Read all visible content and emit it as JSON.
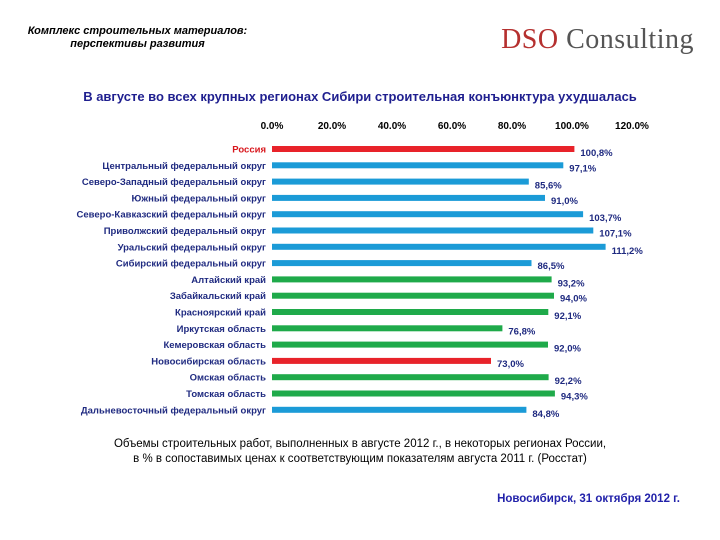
{
  "header": {
    "left_title_line1": "Комплекс строительных материалов:",
    "left_title_line2": "перспективы развития",
    "brand_part1": "DSO",
    "brand_part2": "Consulting"
  },
  "headline": "В августе во всех крупных регионах Сибири строительная конъюнктура ухудшалась",
  "chart_data": {
    "type": "bar",
    "orientation": "horizontal",
    "xlim": [
      0,
      120
    ],
    "x_ticks": [
      "0.0%",
      "20.0%",
      "40.0%",
      "60.0%",
      "80.0%",
      "100.0%",
      "120.0%"
    ],
    "tick_values": [
      0,
      20,
      40,
      60,
      80,
      100,
      120
    ],
    "categories": [
      "Россия",
      "Центральный федеральный округ",
      "Северо-Западный федеральный округ",
      "Южный федеральный округ",
      "Северо-Кавказский федеральный округ",
      "Приволжский федеральный округ",
      "Уральский федеральный округ",
      "Сибирский федеральный округ",
      "Алтайский край",
      "Забайкальский край",
      "Красноярский край",
      "Иркутская область",
      "Кемеровская область",
      "Новосибирская область",
      "Омская область",
      "Томская область",
      "Дальневосточный федеральный округ"
    ],
    "values": [
      100.8,
      97.1,
      85.6,
      91.0,
      103.7,
      107.1,
      111.2,
      86.5,
      93.2,
      94.0,
      92.1,
      76.8,
      92.0,
      73.0,
      92.2,
      94.3,
      84.8
    ],
    "value_labels": [
      "100,8%",
      "97,1%",
      "85,6%",
      "91,0%",
      "103,7%",
      "107,1%",
      "111,2%",
      "86,5%",
      "93,2%",
      "94,0%",
      "92,1%",
      "76,8%",
      "92,0%",
      "73,0%",
      "92,2%",
      "94,3%",
      "84,8%"
    ],
    "bar_groups": [
      "highlight",
      "district",
      "district",
      "district",
      "district",
      "district",
      "district",
      "district",
      "siberia",
      "siberia",
      "siberia",
      "siberia",
      "siberia",
      "highlight",
      "siberia",
      "siberia",
      "district"
    ],
    "colors": {
      "highlight": "#e8232a",
      "district": "#1b9bd7",
      "siberia": "#1faa4a"
    }
  },
  "caption": {
    "line1": "Объемы строительных работ, выполненных в августе 2012 г., в некоторых регионах России,",
    "line2": "в % в сопоставимых ценах к соответствующим показателям августа 2011 г. (Росстат)"
  },
  "footer": "Новосибирск, 31 октября 2012 г."
}
